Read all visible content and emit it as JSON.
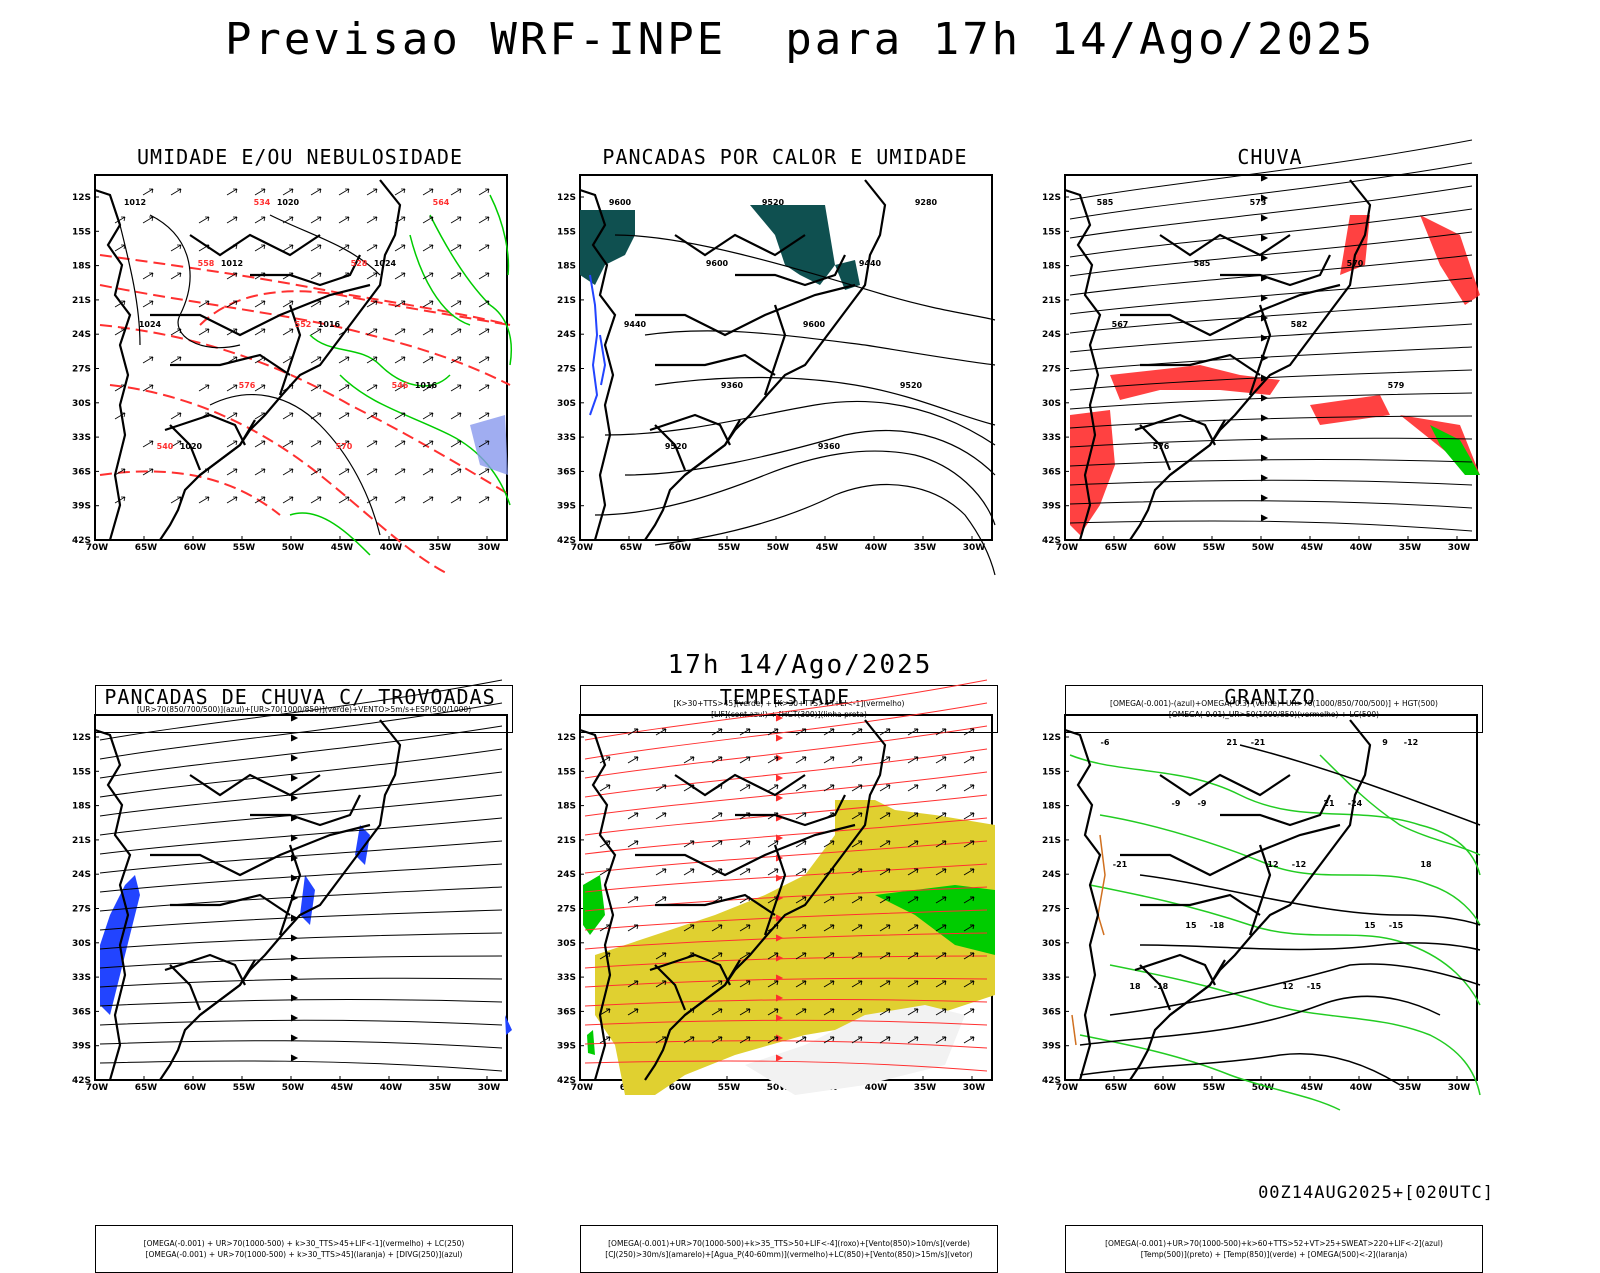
{
  "header": {
    "title": "Previsao WRF-INPE  para 17h 14/Ago/2025"
  },
  "middle": {
    "title": "17h 14/Ago/2025"
  },
  "footer": {
    "run_info": "00Z14AUG2025+[020UTC]"
  },
  "axes": {
    "lat_labels": [
      "12S",
      "15S",
      "18S",
      "21S",
      "24S",
      "27S",
      "30S",
      "33S",
      "36S",
      "39S",
      "42S"
    ],
    "lon_labels": [
      "70W",
      "65W",
      "60W",
      "55W",
      "50W",
      "45W",
      "40W",
      "35W",
      "30W"
    ]
  },
  "panels": [
    {
      "id": "umidade",
      "title": "UMIDADE E/OU NEBULOSIDADE",
      "legend": [
        "[UR>70(850/700/500)](azul)+[UR>70(1000/850)](verde)+VENTO>5m/s+ESP(500/1000)"
      ],
      "contour_labels": [
        "1012",
        "1012",
        "1016",
        "1016",
        "1020",
        "1020",
        "1024",
        "1024",
        "576",
        "570",
        "564",
        "558",
        "552",
        "546",
        "540",
        "534",
        "528"
      ],
      "colors": {
        "contour": "#000000",
        "thickness": "#ff3030",
        "humid_low": "#00cc00",
        "humid_high": "#3355ff"
      }
    },
    {
      "id": "pancadas-calor",
      "title": "PANCADAS POR CALOR E UMIDADE",
      "legend": [
        "[K>30+TTS>45](verde) + [K>30+TTS>45+LI<-1](vermelho)",
        "[LIF](cont.azul) + [HGT(300)](linha preta)"
      ],
      "contour_labels": [
        "9600",
        "9600",
        "9600",
        "9520",
        "9520",
        "9520",
        "9440",
        "9440",
        "9360",
        "9360",
        "9280"
      ],
      "colors": {
        "contour": "#000000",
        "unstable": "#0f5050",
        "lif": "#2244ff"
      }
    },
    {
      "id": "chuva",
      "title": "CHUVA",
      "legend": [
        "[OMEGA(-0.001)-(azul)+OMEGA(-0.3)-(verde)+UR>70(1000/850/700/500)] + HGT(500)",
        "[OMEGA(-0.01)_UR>50(1000/850)(vermelho) + LC(500)"
      ],
      "contour_labels": [
        "585",
        "585",
        "582",
        "579",
        "576",
        "573",
        "570",
        "567"
      ],
      "colors": {
        "streamline": "#000000",
        "rain": "#ff2020",
        "strong": "#00cc00",
        "weak": "#2244ff"
      }
    },
    {
      "id": "pancadas-trovoadas",
      "title": "PANCADAS DE CHUVA C/ TROVOADAS",
      "legend": [
        "[OMEGA(-0.001) + UR>70(1000-500) + k>30_TTS>45+LIF<-1](vermelho) + LC(250)",
        "[OMEGA(-0.001) + UR>70(1000-500) + k>30_TTS>45](laranja) + [DIVG(250)](azul)"
      ],
      "contour_labels": [],
      "colors": {
        "streamline": "#000000",
        "divergence": "#2244ff"
      }
    },
    {
      "id": "tempestade",
      "title": "TEMPESTADE",
      "legend": [
        "[OMEGA(-0.001)+UR>70(1000-500)+k>35_TTS>50+LIF<-4](roxo)+[Vento(850)>10m/s](verde)",
        "[CJ(250)>30m/s](amarelo)+[Agua_P(40-60mm)](vermelho)+LC(850)+[Vento(850)>15m/s](vetor)"
      ],
      "contour_labels": [],
      "colors": {
        "streamline": "#ff3030",
        "jet": "#e0d030",
        "wind": "#00cc00",
        "hatch": "#f2f2f2"
      }
    },
    {
      "id": "granizo",
      "title": "GRANIZO",
      "legend": [
        "[OMEGA(-0.001)+UR>70(1000-500)+k>60+TTS>52+VT>25+SWEAT>220+LIF<-2](azul)",
        "[Temp(500)](preto) + [Temp(850)](verde) + [OMEGA(500)<-2](laranja)"
      ],
      "contour_labels": [
        "-6",
        "-9",
        "-12",
        "-15",
        "-18",
        "-21",
        "-24",
        "-21",
        "-18",
        "-15",
        "-12",
        "-9",
        "12",
        "15",
        "18",
        "21",
        "21",
        "18",
        "15",
        "12",
        "9"
      ],
      "colors": {
        "t500": "#000000",
        "t850": "#22cc22",
        "omega": "#d07020"
      }
    }
  ]
}
